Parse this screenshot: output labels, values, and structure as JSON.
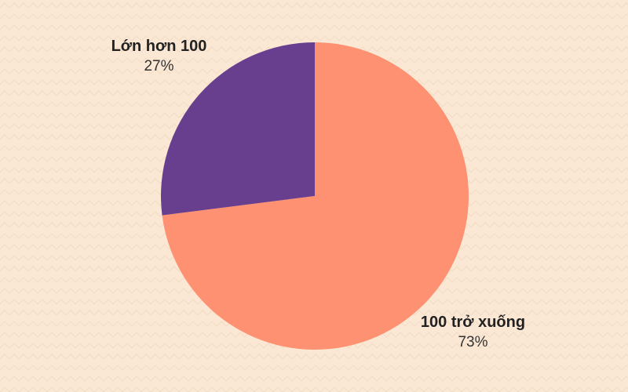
{
  "chart_data": {
    "type": "pie",
    "title": "",
    "slices": [
      {
        "label": "100 trở xuống",
        "value": 73,
        "value_label": "73%",
        "color": "#fe9171"
      },
      {
        "label": "Lớn hơn 100",
        "value": 27,
        "value_label": "27%",
        "color": "#673f8e"
      }
    ],
    "start_angle": "12 o'clock",
    "direction": "clockwise",
    "legend": "none",
    "background_color": "#fbe8d4"
  }
}
